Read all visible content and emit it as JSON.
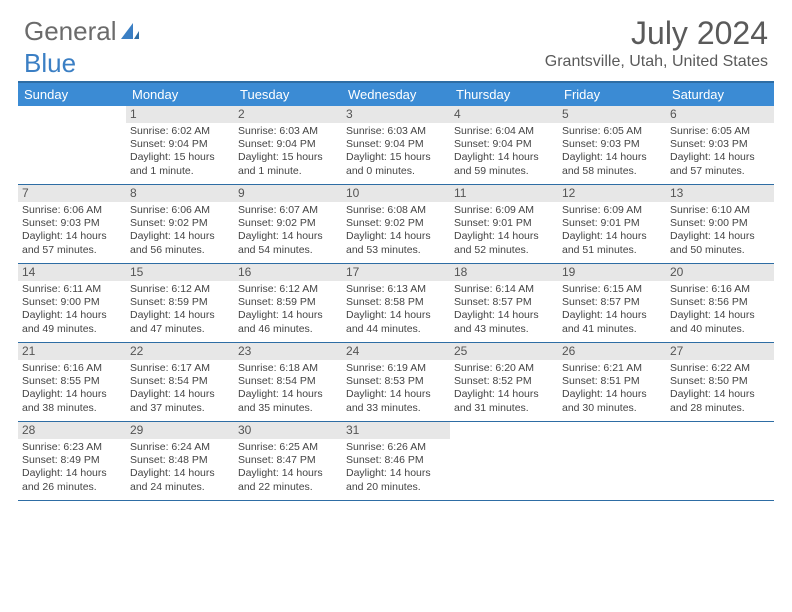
{
  "brand": {
    "main": "General",
    "accent": "Blue"
  },
  "title": "July 2024",
  "location": "Grantsville, Utah, United States",
  "colors": {
    "header_bg": "#3b8bd4",
    "header_text": "#ffffff",
    "rule": "#2e6da4",
    "daynum_bg": "#e7e7e7",
    "text": "#444444",
    "title_text": "#5a5a5a",
    "logo_gray": "#6b6b6b",
    "logo_blue": "#3b7fc4"
  },
  "weekdays": [
    "Sunday",
    "Monday",
    "Tuesday",
    "Wednesday",
    "Thursday",
    "Friday",
    "Saturday"
  ],
  "weeks": [
    [
      {
        "n": "",
        "lines": []
      },
      {
        "n": "1",
        "lines": [
          "Sunrise: 6:02 AM",
          "Sunset: 9:04 PM",
          "Daylight: 15 hours",
          "and 1 minute."
        ]
      },
      {
        "n": "2",
        "lines": [
          "Sunrise: 6:03 AM",
          "Sunset: 9:04 PM",
          "Daylight: 15 hours",
          "and 1 minute."
        ]
      },
      {
        "n": "3",
        "lines": [
          "Sunrise: 6:03 AM",
          "Sunset: 9:04 PM",
          "Daylight: 15 hours",
          "and 0 minutes."
        ]
      },
      {
        "n": "4",
        "lines": [
          "Sunrise: 6:04 AM",
          "Sunset: 9:04 PM",
          "Daylight: 14 hours",
          "and 59 minutes."
        ]
      },
      {
        "n": "5",
        "lines": [
          "Sunrise: 6:05 AM",
          "Sunset: 9:03 PM",
          "Daylight: 14 hours",
          "and 58 minutes."
        ]
      },
      {
        "n": "6",
        "lines": [
          "Sunrise: 6:05 AM",
          "Sunset: 9:03 PM",
          "Daylight: 14 hours",
          "and 57 minutes."
        ]
      }
    ],
    [
      {
        "n": "7",
        "lines": [
          "Sunrise: 6:06 AM",
          "Sunset: 9:03 PM",
          "Daylight: 14 hours",
          "and 57 minutes."
        ]
      },
      {
        "n": "8",
        "lines": [
          "Sunrise: 6:06 AM",
          "Sunset: 9:02 PM",
          "Daylight: 14 hours",
          "and 56 minutes."
        ]
      },
      {
        "n": "9",
        "lines": [
          "Sunrise: 6:07 AM",
          "Sunset: 9:02 PM",
          "Daylight: 14 hours",
          "and 54 minutes."
        ]
      },
      {
        "n": "10",
        "lines": [
          "Sunrise: 6:08 AM",
          "Sunset: 9:02 PM",
          "Daylight: 14 hours",
          "and 53 minutes."
        ]
      },
      {
        "n": "11",
        "lines": [
          "Sunrise: 6:09 AM",
          "Sunset: 9:01 PM",
          "Daylight: 14 hours",
          "and 52 minutes."
        ]
      },
      {
        "n": "12",
        "lines": [
          "Sunrise: 6:09 AM",
          "Sunset: 9:01 PM",
          "Daylight: 14 hours",
          "and 51 minutes."
        ]
      },
      {
        "n": "13",
        "lines": [
          "Sunrise: 6:10 AM",
          "Sunset: 9:00 PM",
          "Daylight: 14 hours",
          "and 50 minutes."
        ]
      }
    ],
    [
      {
        "n": "14",
        "lines": [
          "Sunrise: 6:11 AM",
          "Sunset: 9:00 PM",
          "Daylight: 14 hours",
          "and 49 minutes."
        ]
      },
      {
        "n": "15",
        "lines": [
          "Sunrise: 6:12 AM",
          "Sunset: 8:59 PM",
          "Daylight: 14 hours",
          "and 47 minutes."
        ]
      },
      {
        "n": "16",
        "lines": [
          "Sunrise: 6:12 AM",
          "Sunset: 8:59 PM",
          "Daylight: 14 hours",
          "and 46 minutes."
        ]
      },
      {
        "n": "17",
        "lines": [
          "Sunrise: 6:13 AM",
          "Sunset: 8:58 PM",
          "Daylight: 14 hours",
          "and 44 minutes."
        ]
      },
      {
        "n": "18",
        "lines": [
          "Sunrise: 6:14 AM",
          "Sunset: 8:57 PM",
          "Daylight: 14 hours",
          "and 43 minutes."
        ]
      },
      {
        "n": "19",
        "lines": [
          "Sunrise: 6:15 AM",
          "Sunset: 8:57 PM",
          "Daylight: 14 hours",
          "and 41 minutes."
        ]
      },
      {
        "n": "20",
        "lines": [
          "Sunrise: 6:16 AM",
          "Sunset: 8:56 PM",
          "Daylight: 14 hours",
          "and 40 minutes."
        ]
      }
    ],
    [
      {
        "n": "21",
        "lines": [
          "Sunrise: 6:16 AM",
          "Sunset: 8:55 PM",
          "Daylight: 14 hours",
          "and 38 minutes."
        ]
      },
      {
        "n": "22",
        "lines": [
          "Sunrise: 6:17 AM",
          "Sunset: 8:54 PM",
          "Daylight: 14 hours",
          "and 37 minutes."
        ]
      },
      {
        "n": "23",
        "lines": [
          "Sunrise: 6:18 AM",
          "Sunset: 8:54 PM",
          "Daylight: 14 hours",
          "and 35 minutes."
        ]
      },
      {
        "n": "24",
        "lines": [
          "Sunrise: 6:19 AM",
          "Sunset: 8:53 PM",
          "Daylight: 14 hours",
          "and 33 minutes."
        ]
      },
      {
        "n": "25",
        "lines": [
          "Sunrise: 6:20 AM",
          "Sunset: 8:52 PM",
          "Daylight: 14 hours",
          "and 31 minutes."
        ]
      },
      {
        "n": "26",
        "lines": [
          "Sunrise: 6:21 AM",
          "Sunset: 8:51 PM",
          "Daylight: 14 hours",
          "and 30 minutes."
        ]
      },
      {
        "n": "27",
        "lines": [
          "Sunrise: 6:22 AM",
          "Sunset: 8:50 PM",
          "Daylight: 14 hours",
          "and 28 minutes."
        ]
      }
    ],
    [
      {
        "n": "28",
        "lines": [
          "Sunrise: 6:23 AM",
          "Sunset: 8:49 PM",
          "Daylight: 14 hours",
          "and 26 minutes."
        ]
      },
      {
        "n": "29",
        "lines": [
          "Sunrise: 6:24 AM",
          "Sunset: 8:48 PM",
          "Daylight: 14 hours",
          "and 24 minutes."
        ]
      },
      {
        "n": "30",
        "lines": [
          "Sunrise: 6:25 AM",
          "Sunset: 8:47 PM",
          "Daylight: 14 hours",
          "and 22 minutes."
        ]
      },
      {
        "n": "31",
        "lines": [
          "Sunrise: 6:26 AM",
          "Sunset: 8:46 PM",
          "Daylight: 14 hours",
          "and 20 minutes."
        ]
      },
      {
        "n": "",
        "lines": []
      },
      {
        "n": "",
        "lines": []
      },
      {
        "n": "",
        "lines": []
      }
    ]
  ]
}
